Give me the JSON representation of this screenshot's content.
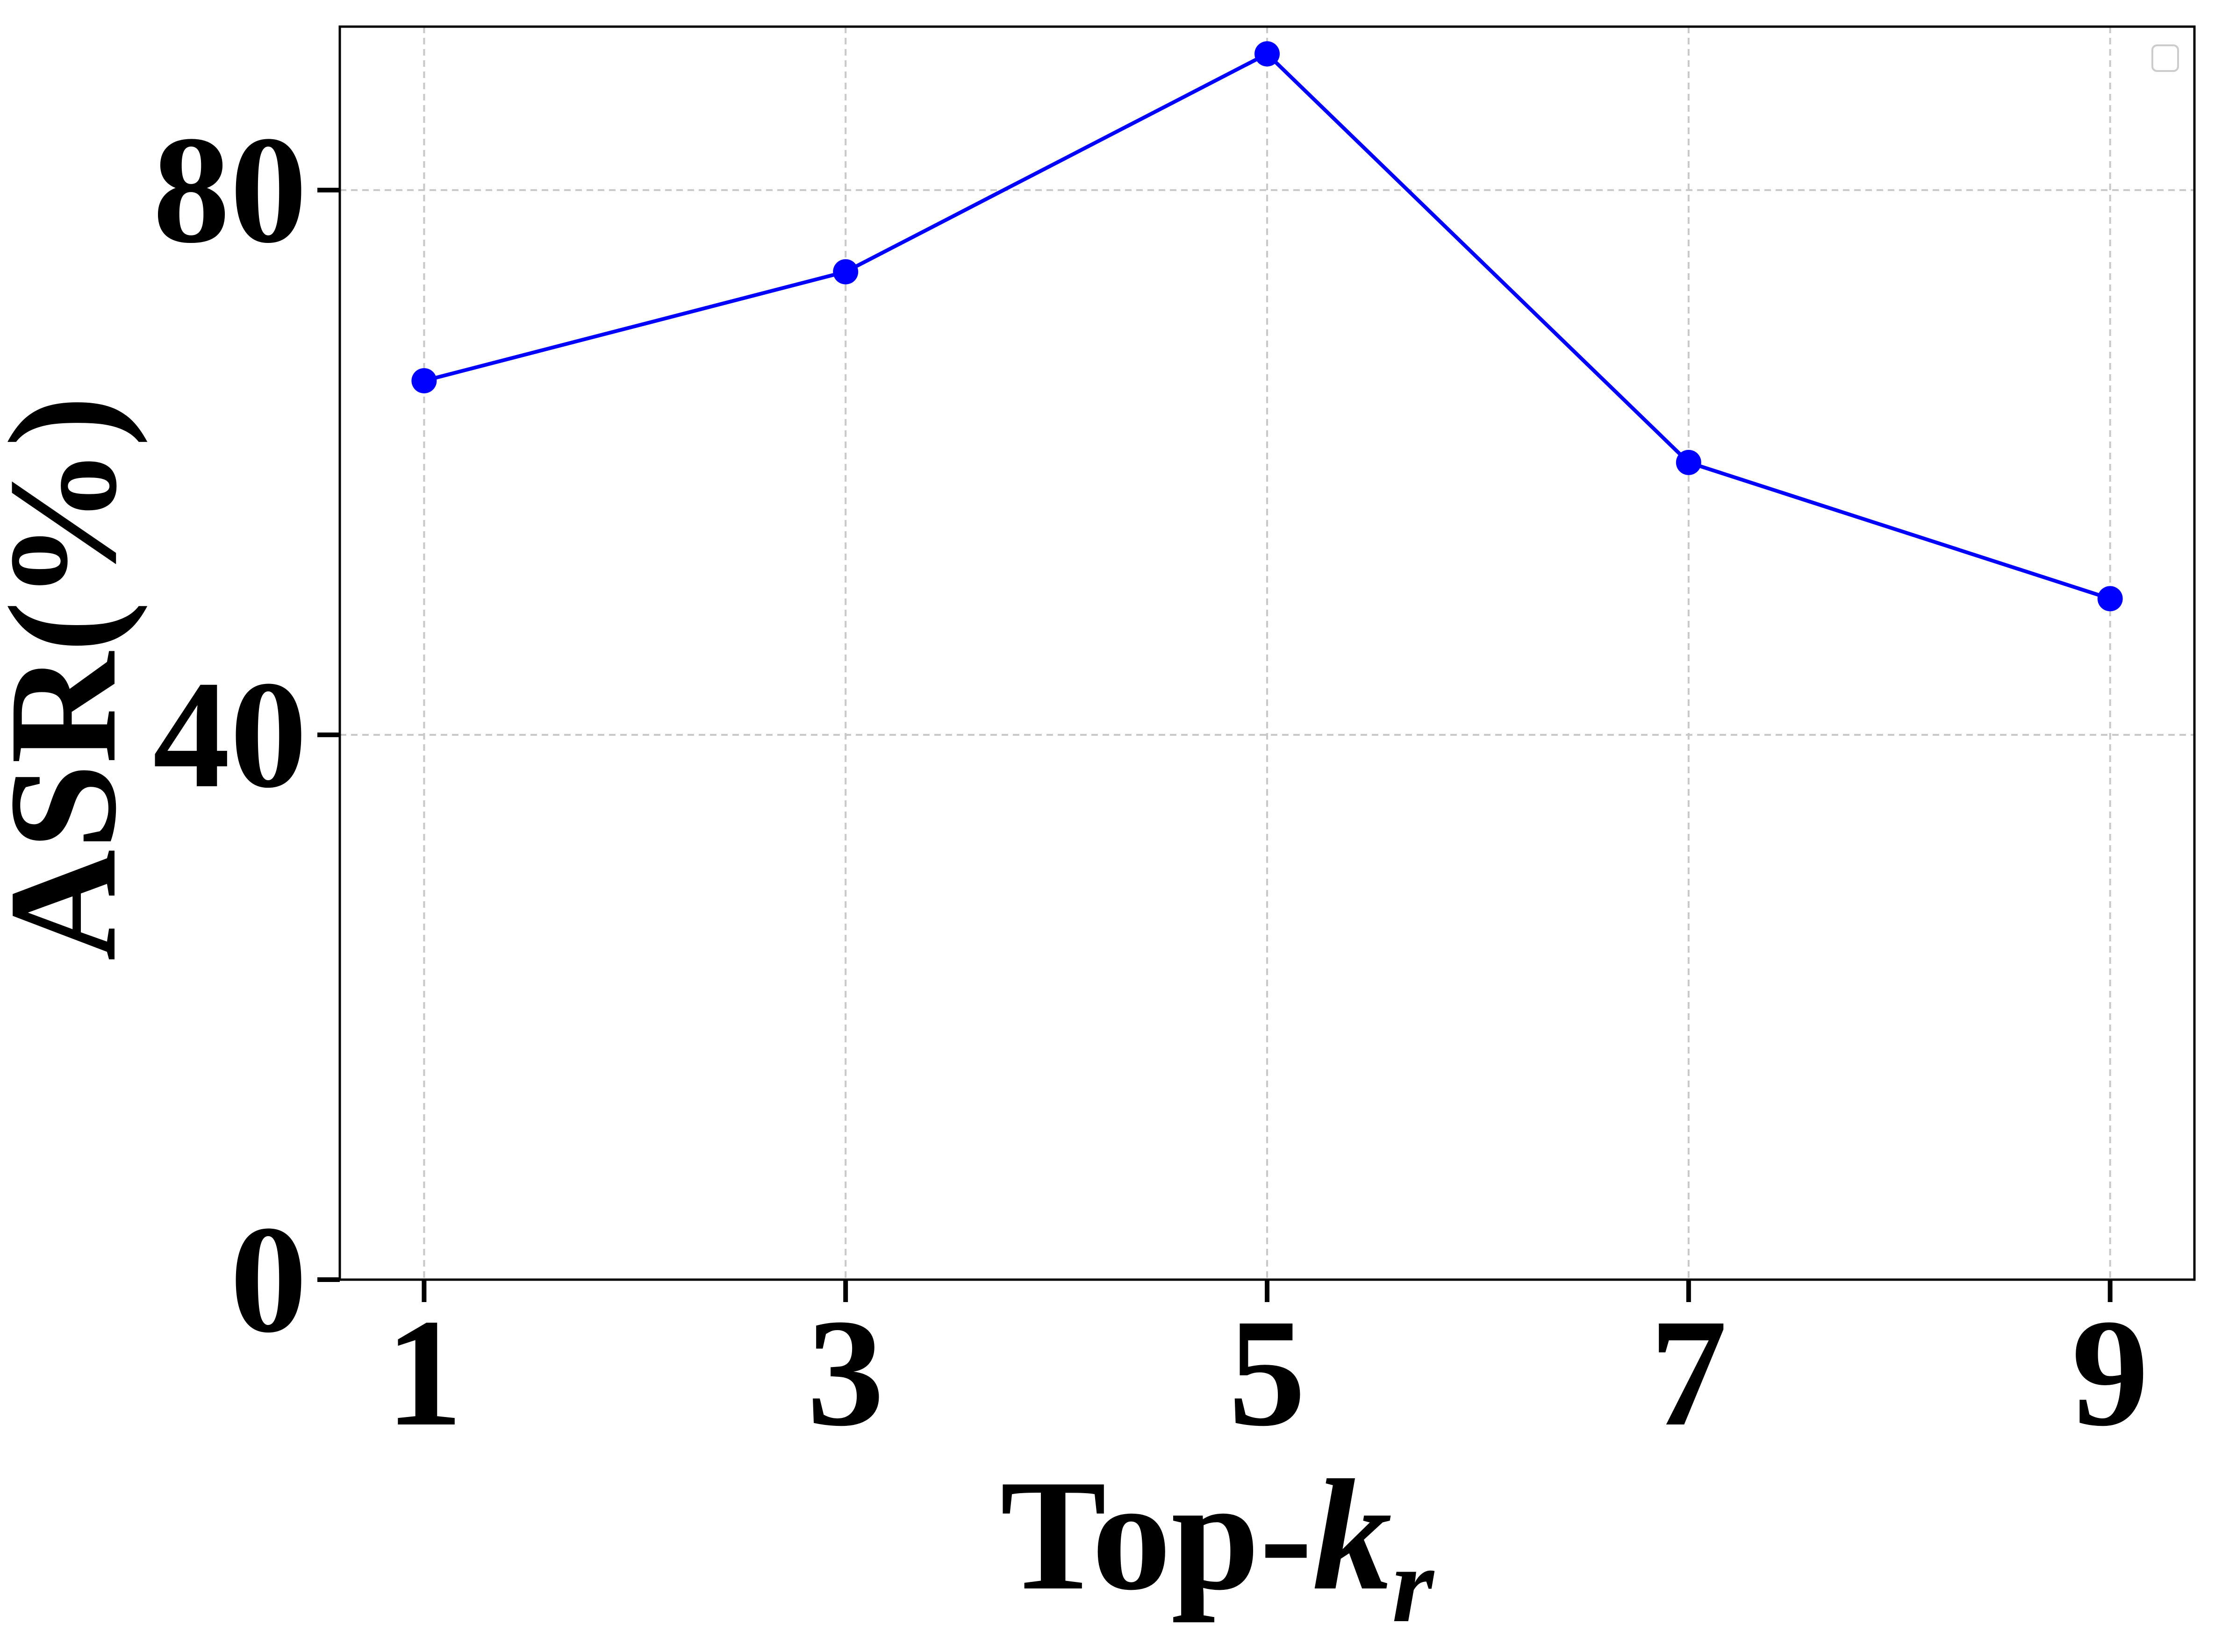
{
  "chart_data": {
    "type": "line",
    "x": [
      1,
      3,
      5,
      7,
      9
    ],
    "series": [
      {
        "values": [
          66,
          74,
          90,
          60,
          50
        ],
        "color": "#0000ff",
        "marker": "circle"
      }
    ],
    "xlabel_main": "Top-",
    "xlabel_var": "k",
    "xlabel_sub": "r",
    "ylabel": "ASR(%)",
    "xticks": [
      1,
      3,
      5,
      7,
      9
    ],
    "yticks": [
      0,
      40,
      80
    ],
    "xlim": [
      0.6,
      9.4
    ],
    "ylim": [
      0,
      92
    ],
    "grid": true,
    "grid_style": "dashed",
    "legend": "top-right (empty)"
  }
}
